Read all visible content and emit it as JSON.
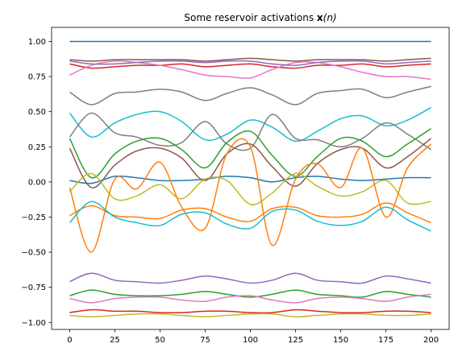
{
  "chart_data": {
    "type": "line",
    "title": "Some reservoir activations ",
    "title_math": "x",
    "title_tail": "(n)",
    "xlabel": "",
    "ylabel": "",
    "xlim": [
      -10,
      210
    ],
    "ylim": [
      -1.05,
      1.1
    ],
    "grid": false,
    "legend": false,
    "x_ticks": [
      0,
      25,
      50,
      75,
      100,
      125,
      150,
      175,
      200
    ],
    "x_tick_labels": [
      "0",
      "25",
      "50",
      "75",
      "100",
      "125",
      "150",
      "175",
      "200"
    ],
    "y_ticks": [
      1.0,
      0.75,
      0.5,
      0.25,
      0.0,
      -0.25,
      -0.5,
      -0.75,
      -1.0
    ],
    "y_tick_labels": [
      "1.00",
      "0.75",
      "0.50",
      "0.25",
      "0.00",
      "−0.25",
      "−0.50",
      "−0.75",
      "−1.00"
    ],
    "x": [
      0,
      12,
      25,
      37,
      50,
      62,
      75,
      87,
      100,
      112,
      125,
      137,
      150,
      162,
      175,
      187,
      200
    ],
    "series": [
      {
        "color": "#1f77b4",
        "values": [
          1.0,
          1.0,
          1.0,
          1.0,
          1.0,
          1.0,
          1.0,
          1.0,
          1.0,
          1.0,
          1.0,
          1.0,
          1.0,
          1.0,
          1.0,
          1.0,
          1.0
        ]
      },
      {
        "color": "#8c564b",
        "values": [
          0.87,
          0.86,
          0.87,
          0.87,
          0.87,
          0.87,
          0.86,
          0.87,
          0.88,
          0.87,
          0.86,
          0.87,
          0.87,
          0.87,
          0.86,
          0.87,
          0.88
        ]
      },
      {
        "color": "#d62728",
        "values": [
          0.84,
          0.81,
          0.82,
          0.83,
          0.83,
          0.84,
          0.82,
          0.83,
          0.84,
          0.82,
          0.81,
          0.83,
          0.83,
          0.84,
          0.82,
          0.83,
          0.84
        ]
      },
      {
        "color": "#e377c2",
        "values": [
          0.76,
          0.83,
          0.86,
          0.85,
          0.83,
          0.8,
          0.76,
          0.75,
          0.74,
          0.8,
          0.85,
          0.85,
          0.82,
          0.78,
          0.75,
          0.75,
          0.73
        ]
      },
      {
        "color": "#9467bd",
        "values": [
          0.86,
          0.84,
          0.84,
          0.85,
          0.86,
          0.86,
          0.85,
          0.86,
          0.86,
          0.84,
          0.83,
          0.85,
          0.86,
          0.86,
          0.84,
          0.85,
          0.86
        ]
      },
      {
        "color": "#7f7f7f",
        "values": [
          0.64,
          0.55,
          0.63,
          0.64,
          0.66,
          0.64,
          0.58,
          0.63,
          0.67,
          0.62,
          0.55,
          0.63,
          0.65,
          0.66,
          0.6,
          0.64,
          0.68
        ]
      },
      {
        "color": "#17becf",
        "values": [
          0.49,
          0.32,
          0.42,
          0.48,
          0.5,
          0.43,
          0.3,
          0.34,
          0.44,
          0.39,
          0.29,
          0.36,
          0.45,
          0.47,
          0.4,
          0.44,
          0.53
        ]
      },
      {
        "color": "#7f7f7f",
        "values": [
          0.32,
          0.49,
          0.35,
          0.32,
          0.26,
          0.28,
          0.43,
          0.27,
          0.24,
          0.48,
          0.31,
          0.3,
          0.25,
          0.31,
          0.42,
          0.34,
          0.23
        ]
      },
      {
        "color": "#2ca02c",
        "values": [
          0.31,
          0.03,
          0.2,
          0.29,
          0.31,
          0.23,
          0.1,
          0.28,
          0.36,
          0.19,
          0.04,
          0.18,
          0.31,
          0.29,
          0.18,
          0.27,
          0.38
        ]
      },
      {
        "color": "#8c564b",
        "values": [
          0.24,
          -0.04,
          0.12,
          0.22,
          0.24,
          0.17,
          0.01,
          0.2,
          0.27,
          0.11,
          -0.03,
          0.13,
          0.23,
          0.24,
          0.1,
          0.18,
          0.31
        ]
      },
      {
        "color": "#1f77b4",
        "values": [
          0.01,
          -0.01,
          0.04,
          0.03,
          0.01,
          0.01,
          0.02,
          0.04,
          0.03,
          0.0,
          0.03,
          0.04,
          0.02,
          0.01,
          0.02,
          0.03,
          0.03
        ]
      },
      {
        "color": "#bcbd22",
        "values": [
          -0.07,
          0.06,
          -0.12,
          -0.1,
          -0.02,
          -0.12,
          0.02,
          0.01,
          -0.16,
          -0.08,
          0.06,
          -0.03,
          -0.1,
          -0.07,
          0.01,
          -0.15,
          -0.14
        ]
      },
      {
        "color": "#ff7f0e",
        "values": [
          -0.04,
          -0.5,
          0.02,
          -0.05,
          0.14,
          -0.18,
          -0.33,
          0.2,
          0.25,
          -0.45,
          0.02,
          0.13,
          -0.04,
          0.24,
          -0.25,
          0.1,
          0.27
        ]
      },
      {
        "color": "#ff7f0e",
        "values": [
          -0.24,
          -0.17,
          -0.24,
          -0.25,
          -0.26,
          -0.2,
          -0.19,
          -0.25,
          -0.28,
          -0.19,
          -0.18,
          -0.24,
          -0.25,
          -0.23,
          -0.15,
          -0.22,
          -0.29
        ]
      },
      {
        "color": "#17becf",
        "values": [
          -0.29,
          -0.14,
          -0.25,
          -0.29,
          -0.31,
          -0.23,
          -0.22,
          -0.3,
          -0.33,
          -0.21,
          -0.2,
          -0.28,
          -0.31,
          -0.28,
          -0.18,
          -0.27,
          -0.35
        ]
      },
      {
        "color": "#9467bd",
        "values": [
          -0.71,
          -0.65,
          -0.7,
          -0.71,
          -0.72,
          -0.7,
          -0.67,
          -0.69,
          -0.72,
          -0.7,
          -0.65,
          -0.7,
          -0.71,
          -0.72,
          -0.67,
          -0.69,
          -0.72
        ]
      },
      {
        "color": "#2ca02c",
        "values": [
          -0.81,
          -0.77,
          -0.8,
          -0.81,
          -0.81,
          -0.8,
          -0.78,
          -0.8,
          -0.82,
          -0.8,
          -0.77,
          -0.8,
          -0.81,
          -0.82,
          -0.78,
          -0.8,
          -0.82
        ]
      },
      {
        "color": "#e377c2",
        "values": [
          -0.83,
          -0.86,
          -0.83,
          -0.82,
          -0.82,
          -0.84,
          -0.85,
          -0.82,
          -0.81,
          -0.84,
          -0.86,
          -0.83,
          -0.82,
          -0.83,
          -0.85,
          -0.82,
          -0.8
        ]
      },
      {
        "color": "#d62728",
        "values": [
          -0.93,
          -0.91,
          -0.92,
          -0.92,
          -0.93,
          -0.93,
          -0.92,
          -0.92,
          -0.93,
          -0.93,
          -0.91,
          -0.92,
          -0.93,
          -0.93,
          -0.92,
          -0.92,
          -0.93
        ]
      },
      {
        "color": "#bcbd22",
        "values": [
          -0.95,
          -0.96,
          -0.95,
          -0.94,
          -0.94,
          -0.95,
          -0.96,
          -0.95,
          -0.94,
          -0.94,
          -0.96,
          -0.95,
          -0.94,
          -0.94,
          -0.95,
          -0.95,
          -0.94
        ]
      }
    ]
  }
}
